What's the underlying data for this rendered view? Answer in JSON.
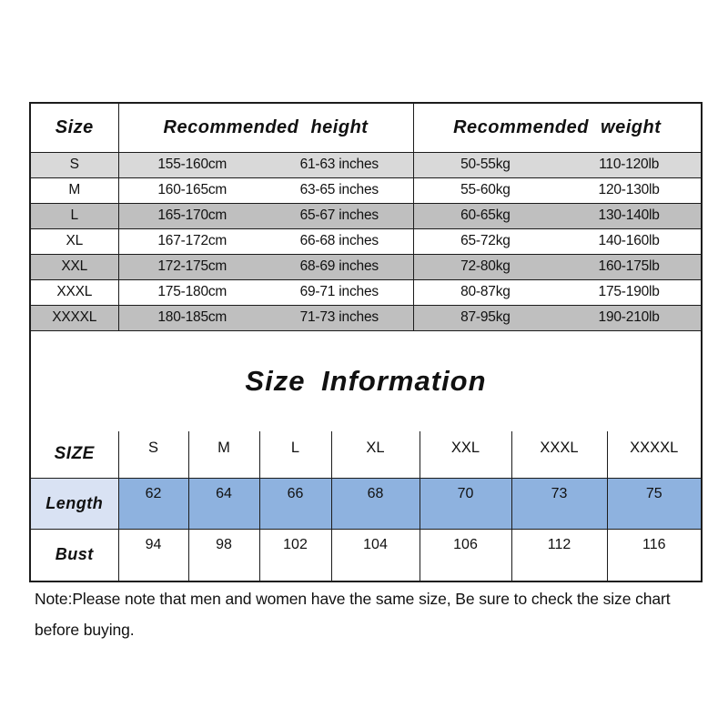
{
  "section_title": "Size Information",
  "size_guide_table": {
    "columns": [
      "Size",
      "Recommended height",
      "Recommended weight"
    ],
    "rows": [
      {
        "size": "S",
        "height_cm": "155-160cm",
        "height_in": "61-63 inches",
        "weight_kg": "50-55kg",
        "weight_lb": "110-120lb",
        "shade": "light"
      },
      {
        "size": "M",
        "height_cm": "160-165cm",
        "height_in": "63-65 inches",
        "weight_kg": "55-60kg",
        "weight_lb": "120-130lb",
        "shade": "none"
      },
      {
        "size": "L",
        "height_cm": "165-170cm",
        "height_in": "65-67 inches",
        "weight_kg": "60-65kg",
        "weight_lb": "130-140lb",
        "shade": "dark"
      },
      {
        "size": "XL",
        "height_cm": "167-172cm",
        "height_in": "66-68 inches",
        "weight_kg": "65-72kg",
        "weight_lb": "140-160lb",
        "shade": "none"
      },
      {
        "size": "XXL",
        "height_cm": "172-175cm",
        "height_in": "68-69 inches",
        "weight_kg": "72-80kg",
        "weight_lb": "160-175lb",
        "shade": "dark"
      },
      {
        "size": "XXXL",
        "height_cm": "175-180cm",
        "height_in": "69-71 inches",
        "weight_kg": "80-87kg",
        "weight_lb": "175-190lb",
        "shade": "none"
      },
      {
        "size": "XXXXL",
        "height_cm": "180-185cm",
        "height_in": "71-73 inches",
        "weight_kg": "87-95kg",
        "weight_lb": "190-210lb",
        "shade": "dark"
      }
    ]
  },
  "measurements_table": {
    "header_label": "SIZE",
    "sizes": [
      "S",
      "M",
      "L",
      "XL",
      "XXL",
      "XXXL",
      "XXXXL"
    ],
    "rows": [
      {
        "label": "Length",
        "values": [
          "62",
          "64",
          "66",
          "68",
          "70",
          "73",
          "75"
        ],
        "highlight": true
      },
      {
        "label": "Bust",
        "values": [
          "94",
          "98",
          "102",
          "104",
          "106",
          "112",
          "116"
        ],
        "highlight": false
      }
    ]
  },
  "note": "Note:Please note that men and women have the same size, Be sure to check the size chart before buying.",
  "colors": {
    "background": "#ffffff",
    "text": "#111111",
    "table_border": "#1c1c1c",
    "row_shade_light": "#d9d9d9",
    "row_shade_dark": "#bfbfbf",
    "length_label_bg": "#d9e2f3",
    "length_value_bg": "#8eb2df"
  }
}
